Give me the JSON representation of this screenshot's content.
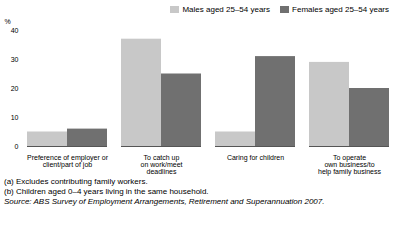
{
  "chart_data": {
    "type": "bar",
    "categories": [
      "Preference of employer or\nclient/part of job",
      "To catch up\non work/meet\ndeadlines",
      "Caring for children",
      "To operate\nown business/to\nhelp family business"
    ],
    "series": [
      {
        "name": "Males aged 25–54 years",
        "color": "#c8c8c8",
        "values": [
          5,
          37,
          5,
          29
        ]
      },
      {
        "name": "Females aged 25–54 years",
        "color": "#707070",
        "values": [
          6,
          25,
          31,
          20
        ]
      }
    ],
    "ylabel": "%",
    "ylim": [
      0,
      40
    ],
    "yticks": [
      0,
      10,
      20,
      30,
      40
    ],
    "legend": "upper right",
    "annotations": [
      "(a) Excludes contributing family workers.",
      "(b) Children aged 0–4 years living in the same household.",
      "Source: ABS Survey of Employment Arrangements, Retirement and Superannuation 2007."
    ]
  }
}
